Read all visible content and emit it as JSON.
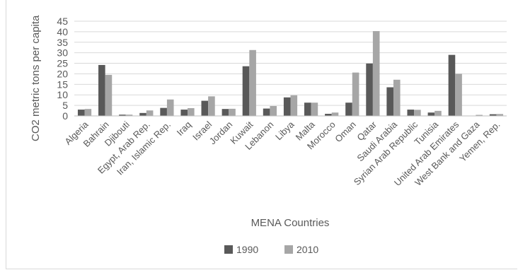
{
  "chart_data": {
    "type": "bar",
    "title": "",
    "xlabel": "MENA Countries",
    "ylabel": "CO2 metric tons per capita",
    "ylim": [
      0,
      45
    ],
    "yticks": [
      0,
      5,
      10,
      15,
      20,
      25,
      30,
      35,
      40,
      45
    ],
    "grid": true,
    "legend": "bottom",
    "categories": [
      "Algeria",
      "Bahrain",
      "Djibouti",
      "Egypt, Arab Rep.",
      "Iran, Islamic Rep.",
      "Iraq",
      "Israel",
      "Jordan",
      "Kuwait",
      "Lebanon",
      "Libya",
      "Malta",
      "Morocco",
      "Oman",
      "Qatar",
      "Saudi Arabia",
      "Syrian Arab Republic",
      "Tunisia",
      "United Arab Emirates",
      "West Bank and Gaza",
      "Yemen, Rep."
    ],
    "series": [
      {
        "name": "1990",
        "color": "#595959",
        "values": [
          3.0,
          24.2,
          0.6,
          1.4,
          3.8,
          3.0,
          7.2,
          3.3,
          23.6,
          3.5,
          8.8,
          6.3,
          1.0,
          6.3,
          24.9,
          13.6,
          3.0,
          1.6,
          29.0,
          0.0,
          0.8
        ]
      },
      {
        "name": "2010",
        "color": "#a6a6a6",
        "values": [
          3.3,
          19.5,
          0.6,
          2.6,
          7.8,
          3.7,
          9.3,
          3.4,
          31.3,
          4.7,
          9.8,
          6.3,
          1.6,
          20.6,
          40.3,
          17.2,
          2.9,
          2.4,
          20.0,
          0.5,
          0.9
        ]
      }
    ]
  }
}
